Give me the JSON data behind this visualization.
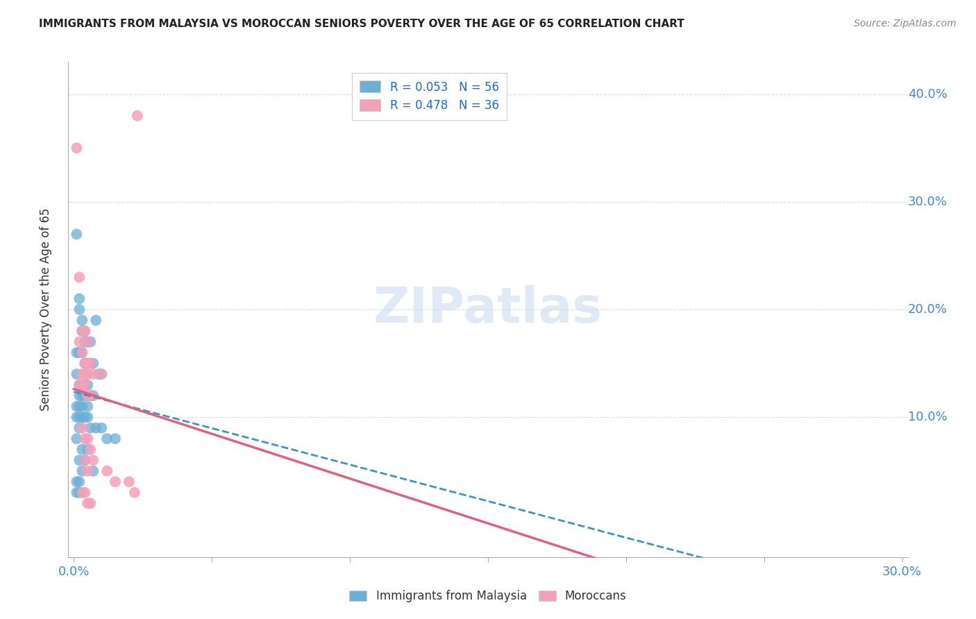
{
  "title": "IMMIGRANTS FROM MALAYSIA VS MOROCCAN SENIORS POVERTY OVER THE AGE OF 65 CORRELATION CHART",
  "source": "Source: ZipAtlas.com",
  "ylabel": "Seniors Poverty Over the Age of 65",
  "watermark": "ZIPatlas",
  "blue_color": "#6baed6",
  "pink_color": "#f4a0b8",
  "blue_line_color": "#4292c6",
  "pink_line_color": "#e06080",
  "legend_text_color": "#2266cc",
  "legend_entries": [
    {
      "label": "R = 0.053   N = 56",
      "color": "#a8c8f8"
    },
    {
      "label": "R = 0.478   N = 36",
      "color": "#f8b8c8"
    }
  ],
  "malaysia_scatter_x": [
    0.001,
    0.002,
    0.002,
    0.003,
    0.003,
    0.004,
    0.004,
    0.005,
    0.005,
    0.006,
    0.001,
    0.002,
    0.003,
    0.004,
    0.005,
    0.006,
    0.007,
    0.008,
    0.009,
    0.01,
    0.001,
    0.002,
    0.003,
    0.004,
    0.005,
    0.006,
    0.007,
    0.002,
    0.003,
    0.004,
    0.005,
    0.001,
    0.002,
    0.003,
    0.002,
    0.003,
    0.004,
    0.005,
    0.001,
    0.002,
    0.006,
    0.008,
    0.01,
    0.012,
    0.015,
    0.001,
    0.003,
    0.005,
    0.002,
    0.004,
    0.003,
    0.007,
    0.001,
    0.002,
    0.001,
    0.002
  ],
  "malaysia_scatter_y": [
    0.27,
    0.21,
    0.2,
    0.19,
    0.18,
    0.18,
    0.17,
    0.17,
    0.17,
    0.17,
    0.16,
    0.16,
    0.16,
    0.15,
    0.15,
    0.15,
    0.15,
    0.19,
    0.14,
    0.14,
    0.14,
    0.13,
    0.13,
    0.13,
    0.13,
    0.12,
    0.12,
    0.12,
    0.12,
    0.12,
    0.11,
    0.11,
    0.11,
    0.11,
    0.1,
    0.1,
    0.1,
    0.1,
    0.1,
    0.09,
    0.09,
    0.09,
    0.09,
    0.08,
    0.08,
    0.08,
    0.07,
    0.07,
    0.06,
    0.06,
    0.05,
    0.05,
    0.04,
    0.04,
    0.03,
    0.03
  ],
  "moroccan_scatter_x": [
    0.001,
    0.002,
    0.003,
    0.004,
    0.005,
    0.002,
    0.003,
    0.004,
    0.005,
    0.006,
    0.007,
    0.003,
    0.004,
    0.005,
    0.002,
    0.003,
    0.004,
    0.005,
    0.006,
    0.003,
    0.004,
    0.005,
    0.006,
    0.01,
    0.007,
    0.004,
    0.005,
    0.012,
    0.015,
    0.02,
    0.022,
    0.003,
    0.004,
    0.005,
    0.006,
    0.023
  ],
  "moroccan_scatter_y": [
    0.35,
    0.23,
    0.18,
    0.18,
    0.17,
    0.17,
    0.16,
    0.15,
    0.15,
    0.15,
    0.14,
    0.14,
    0.14,
    0.14,
    0.13,
    0.13,
    0.13,
    0.12,
    0.12,
    0.09,
    0.08,
    0.08,
    0.07,
    0.14,
    0.06,
    0.06,
    0.05,
    0.05,
    0.04,
    0.04,
    0.03,
    0.03,
    0.03,
    0.02,
    0.02,
    0.38
  ],
  "background_color": "#ffffff",
  "grid_color": "#dddddd",
  "right_y_labels": {
    "0.10": "10.0%",
    "0.20": "20.0%",
    "0.30": "30.0%",
    "0.40": "40.0%"
  },
  "xlim": [
    0.0,
    0.3
  ],
  "ylim": [
    -0.03,
    0.43
  ]
}
